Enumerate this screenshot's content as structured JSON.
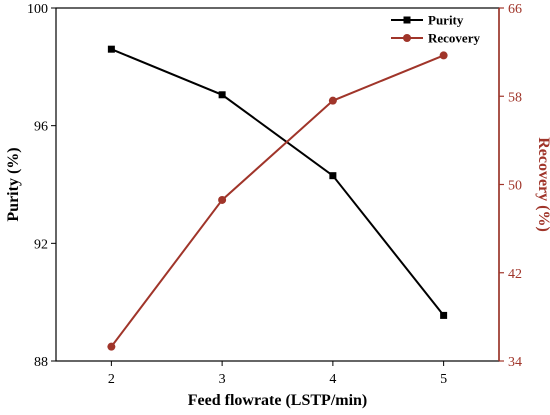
{
  "chart_data": {
    "type": "line",
    "x": [
      2,
      3,
      4,
      5
    ],
    "xlabel": "Feed flowrate (LSTP/min)",
    "xlim": [
      1.5,
      5.5
    ],
    "xticks": [
      2,
      3,
      4,
      5
    ],
    "y_left": {
      "label": "Purity (%)",
      "lim": [
        88,
        100
      ],
      "ticks": [
        88,
        92,
        96,
        100
      ],
      "color": "#000000"
    },
    "y_right": {
      "label": "Recovery (%)",
      "lim": [
        34,
        66
      ],
      "ticks": [
        34,
        42,
        50,
        58,
        66
      ],
      "color": "#a0352a"
    },
    "series": [
      {
        "name": "Purity",
        "axis": "left",
        "marker": "square",
        "color": "#000000",
        "values": [
          98.6,
          97.05,
          94.3,
          89.55
        ]
      },
      {
        "name": "Recovery",
        "axis": "right",
        "marker": "circle",
        "color": "#a0352a",
        "values": [
          35.3,
          48.6,
          57.6,
          61.7
        ]
      }
    ],
    "legend": "top-right",
    "grid": false
  }
}
